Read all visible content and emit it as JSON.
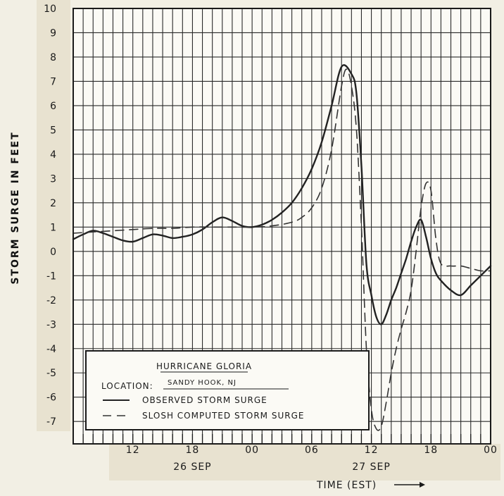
{
  "chart_data": {
    "type": "line",
    "ylabel": "STORM SURGE IN FEET",
    "xlabel": "TIME (EST)",
    "xlim": [
      6,
      48
    ],
    "ylim": [
      -7.4,
      10
    ],
    "y_ticks": [
      "10",
      "9",
      "8",
      "7",
      "6",
      "5",
      "4",
      "3",
      "2",
      "1",
      "0",
      "-1",
      "-2",
      "-3",
      "-4",
      "-5",
      "-6",
      "-7"
    ],
    "x_ticks": [
      {
        "hour": 12,
        "label": "12"
      },
      {
        "hour": 18,
        "label": "18"
      },
      {
        "hour": 24,
        "label": "00"
      },
      {
        "hour": 30,
        "label": "06"
      },
      {
        "hour": 36,
        "label": "12"
      },
      {
        "hour": 42,
        "label": "18"
      },
      {
        "hour": 48,
        "label": "00"
      }
    ],
    "date_labels": [
      {
        "hour": 18,
        "label": "26 SEP"
      },
      {
        "hour": 36,
        "label": "27 SEP"
      }
    ],
    "grid": true,
    "legend_title": "HURRICANE GLORIA",
    "location_label": "LOCATION:",
    "location_value": "SANDY HOOK, NJ",
    "series": [
      {
        "name": "OBSERVED STORM SURGE",
        "style": "solid",
        "color": "#222222",
        "x": [
          6,
          7,
          8,
          9,
          10,
          11,
          12,
          13,
          14,
          15,
          16,
          17,
          18,
          19,
          20,
          21,
          22,
          23,
          24,
          25,
          26,
          27,
          28,
          29,
          30,
          31,
          32,
          33,
          34,
          34.5,
          35,
          35.5,
          36,
          36.5,
          37,
          37.5,
          38,
          38.5,
          39,
          39.5,
          40,
          40.5,
          41,
          41.5,
          42,
          42.5,
          43,
          44,
          45,
          46,
          47,
          48
        ],
        "y": [
          0.5,
          0.7,
          0.85,
          0.75,
          0.6,
          0.45,
          0.4,
          0.55,
          0.7,
          0.65,
          0.55,
          0.6,
          0.7,
          0.9,
          1.2,
          1.4,
          1.25,
          1.05,
          1.0,
          1.1,
          1.3,
          1.6,
          2.0,
          2.6,
          3.4,
          4.5,
          6.0,
          7.6,
          7.3,
          6.5,
          3.5,
          -0.5,
          -1.8,
          -2.7,
          -3.0,
          -2.6,
          -2.0,
          -1.5,
          -0.9,
          -0.3,
          0.4,
          1.0,
          1.3,
          0.6,
          -0.3,
          -0.9,
          -1.2,
          -1.6,
          -1.8,
          -1.4,
          -1.0,
          -0.6
        ]
      },
      {
        "name": "SLOSH COMPUTED STORM SURGE",
        "style": "dashed",
        "color": "#333333",
        "x": [
          6,
          8,
          10,
          12,
          14,
          16,
          18,
          20,
          22,
          24,
          26,
          28,
          29,
          30,
          31,
          32,
          33,
          33.5,
          34,
          34.5,
          35,
          35.5,
          36,
          36.5,
          37,
          37.5,
          38,
          38.5,
          39,
          39.5,
          40,
          40.5,
          41,
          41.5,
          42,
          42.5,
          43,
          44,
          45,
          46,
          47,
          48
        ],
        "y": [
          0.75,
          0.8,
          0.85,
          0.9,
          0.95,
          0.95,
          1.0,
          1.0,
          1.0,
          1.0,
          1.05,
          1.2,
          1.4,
          1.8,
          2.6,
          4.2,
          6.8,
          7.5,
          6.8,
          5.0,
          1.0,
          -4.0,
          -6.5,
          -7.3,
          -7.2,
          -6.2,
          -5.0,
          -4.0,
          -3.2,
          -2.5,
          -1.6,
          0.0,
          1.8,
          2.8,
          2.5,
          0.5,
          -0.5,
          -0.6,
          -0.6,
          -0.7,
          -0.8,
          -0.8
        ]
      }
    ]
  }
}
